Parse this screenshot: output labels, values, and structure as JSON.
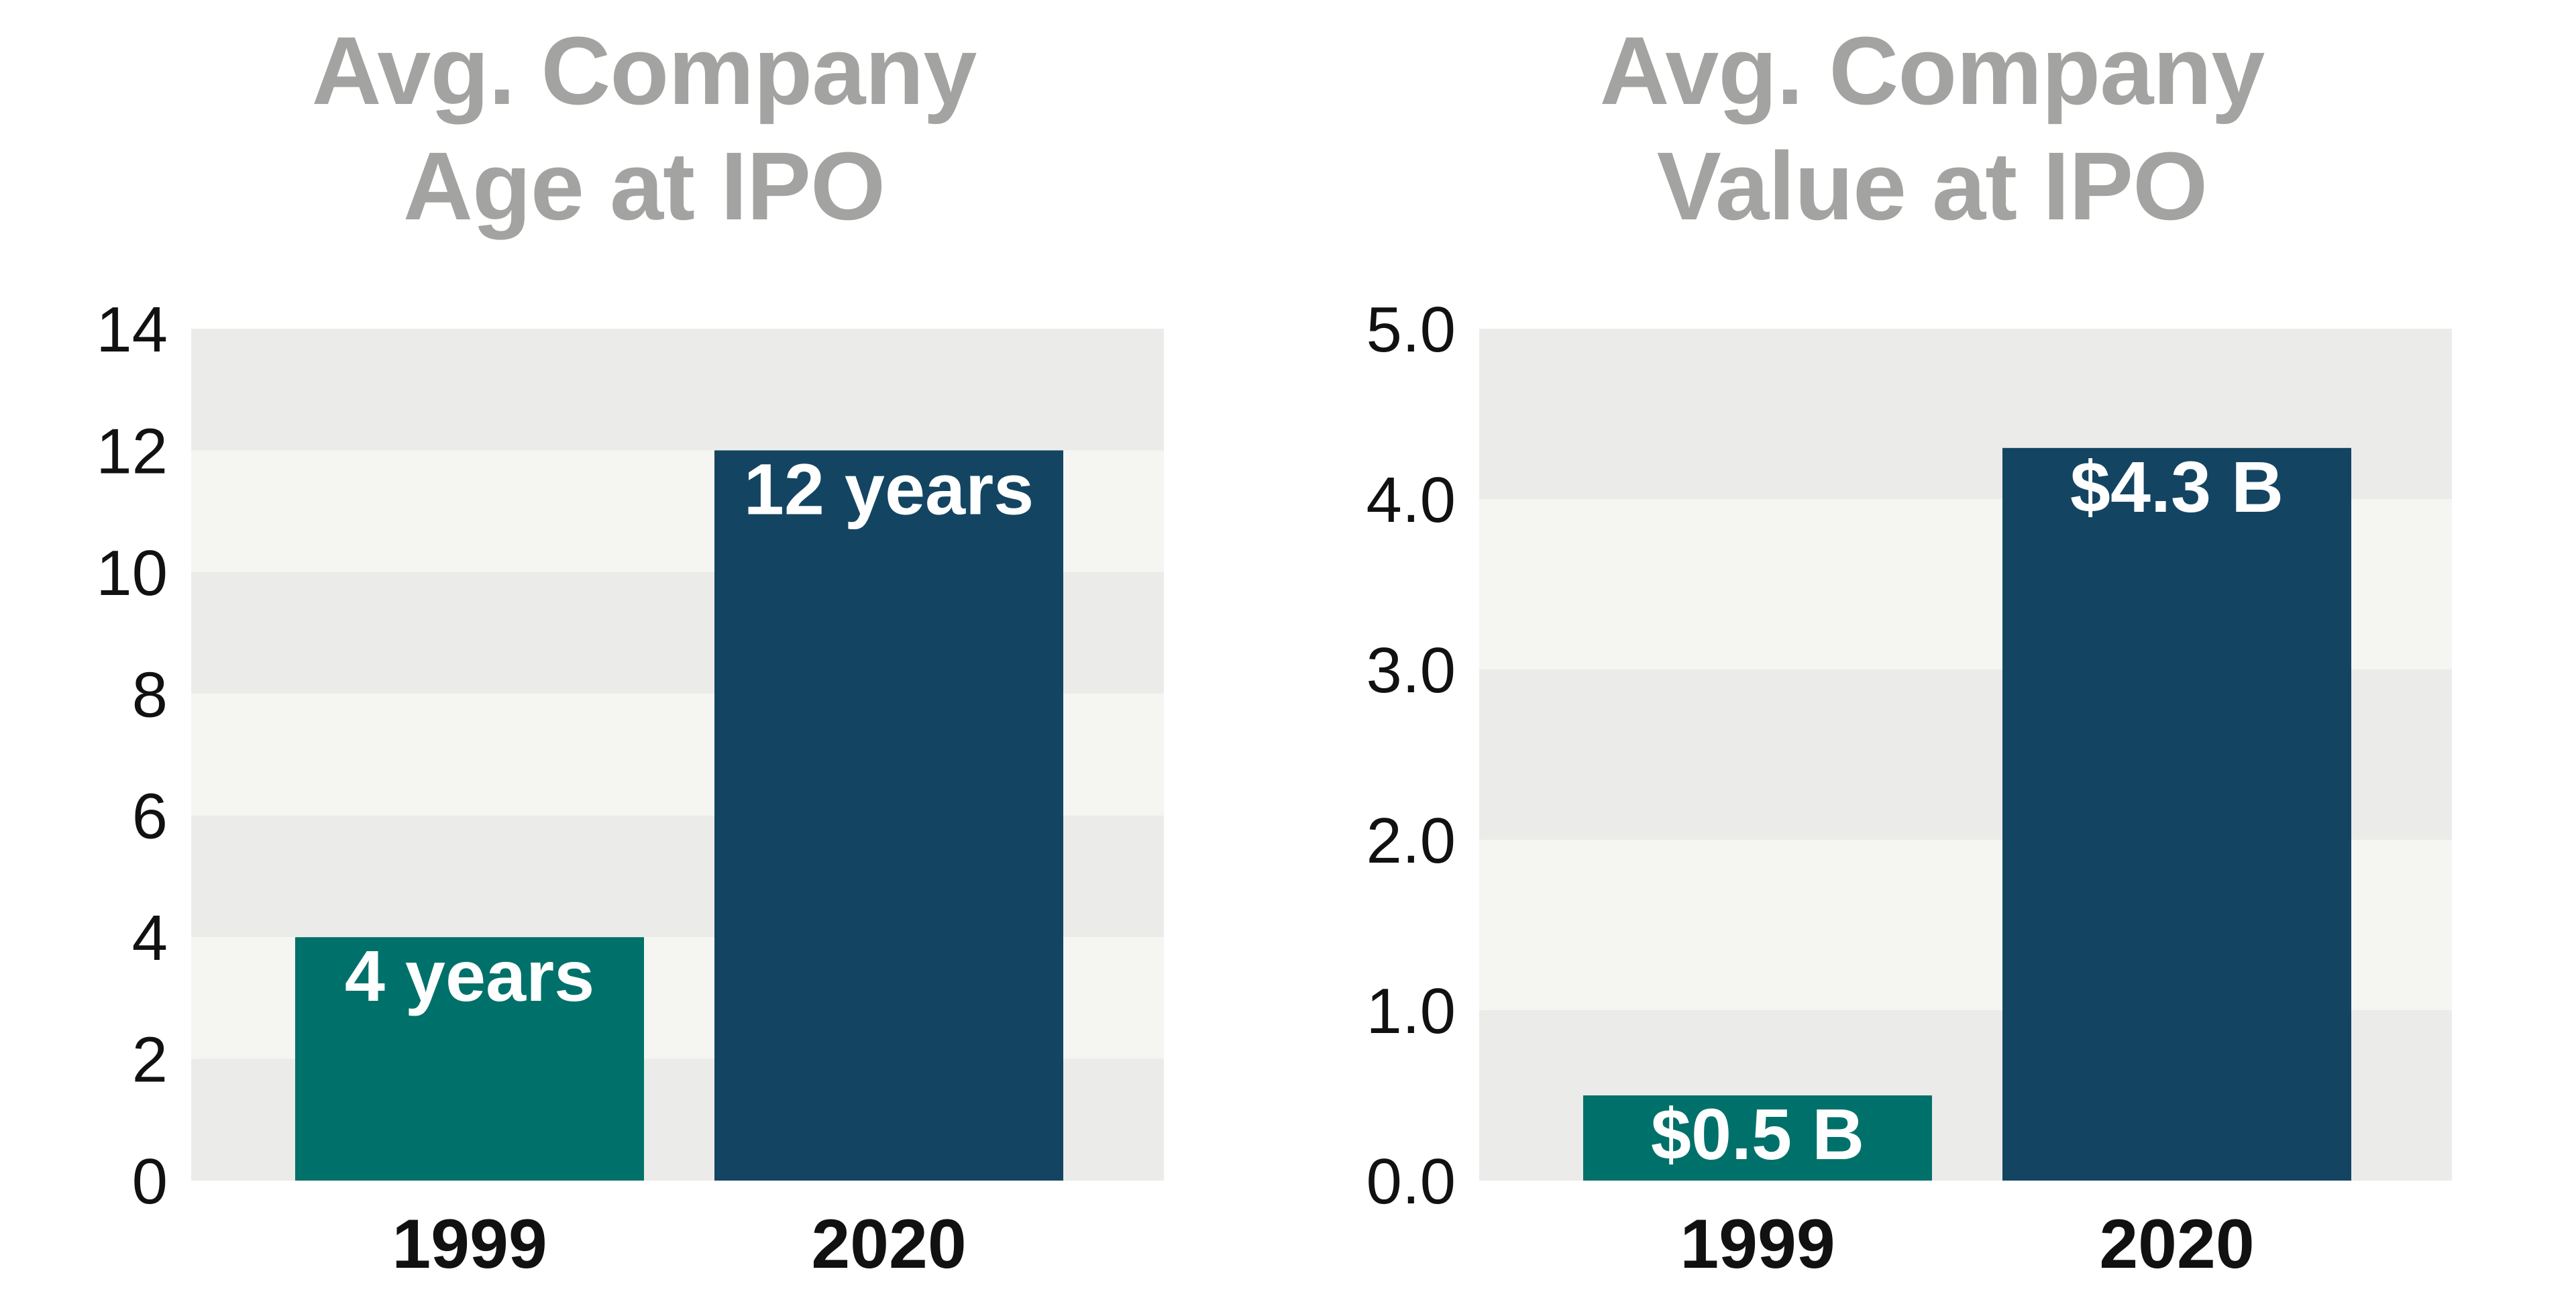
{
  "colors": {
    "title": "#a3a3a1",
    "band_dark": "#ebebe9",
    "band_light": "#f5f5f2",
    "bar_1999": "#00716a",
    "bar_2020": "#134562"
  },
  "chart_data": [
    {
      "type": "bar",
      "title": "Avg. Company\nAge at IPO",
      "xlabel": "",
      "ylabel": "",
      "categories": [
        "1999",
        "2020"
      ],
      "values": [
        4,
        12
      ],
      "data_labels": [
        "4 years",
        "12 years"
      ],
      "ylim": [
        0,
        14
      ],
      "yticks": [
        0,
        2,
        4,
        6,
        8,
        10,
        12,
        14
      ],
      "ytick_labels": [
        "0",
        "2",
        "4",
        "6",
        "8",
        "10",
        "12",
        "14"
      ],
      "grid": "alternating horizontal bands",
      "legend": "none"
    },
    {
      "type": "bar",
      "title": "Avg. Company\nValue at IPO",
      "xlabel": "",
      "ylabel": "",
      "categories": [
        "1999",
        "2020"
      ],
      "values": [
        0.5,
        4.3
      ],
      "data_labels": [
        "$0.5 B",
        "$4.3 B"
      ],
      "ylim": [
        0,
        5
      ],
      "yticks": [
        0,
        1,
        2,
        3,
        4,
        5
      ],
      "ytick_labels": [
        "0.0",
        "1.0",
        "2.0",
        "3.0",
        "4.0",
        "5.0"
      ],
      "grid": "alternating horizontal bands",
      "legend": "none"
    }
  ]
}
